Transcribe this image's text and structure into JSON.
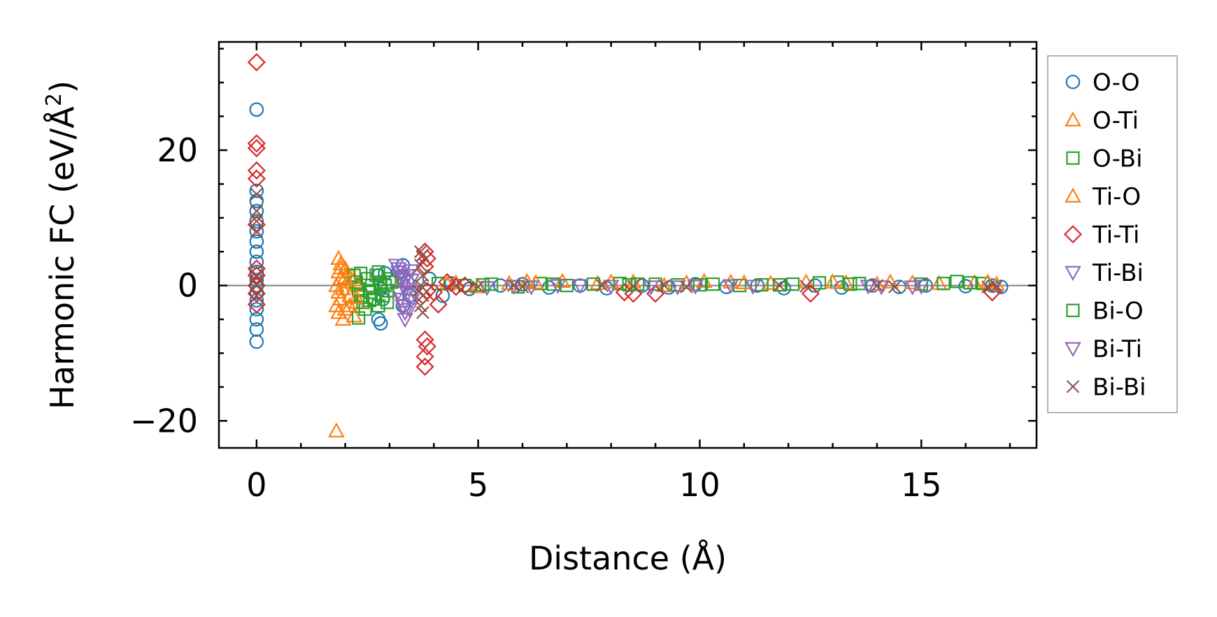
{
  "chart_data": {
    "type": "scatter",
    "xlabel": "Distance (Å)",
    "ylabel_main": "Harmonic FC (eV/Å",
    "ylabel_sup": "2",
    "ylabel_close": ")",
    "xlim": [
      -0.85,
      17.6
    ],
    "ylim": [
      -24,
      36
    ],
    "xticks": [
      0,
      5,
      10,
      15
    ],
    "xtick_labels": [
      "0",
      "5",
      "10",
      "15"
    ],
    "yticks": [
      -20,
      0,
      20
    ],
    "ytick_labels": [
      "−20",
      "0",
      "20"
    ],
    "x_minor_step": 1,
    "y_minor_step": 5,
    "zero_line": true,
    "grid": false,
    "legend_position": "outside-right",
    "series": [
      {
        "name": "O-O",
        "marker": "circle",
        "color": "#1f77b4",
        "points": [
          [
            0,
            26
          ],
          [
            0,
            14
          ],
          [
            0,
            12.5
          ],
          [
            0,
            11
          ],
          [
            0,
            9.5
          ],
          [
            0,
            8
          ],
          [
            0,
            6.5
          ],
          [
            0,
            5
          ],
          [
            0,
            3.5
          ],
          [
            0,
            2
          ],
          [
            0,
            0.8
          ],
          [
            0,
            0
          ],
          [
            0,
            -1
          ],
          [
            0,
            -2.2
          ],
          [
            0,
            -3.5
          ],
          [
            0,
            -5
          ],
          [
            0,
            -6.5
          ],
          [
            0,
            -8.3
          ],
          [
            2.75,
            1.5
          ],
          [
            2.8,
            -0.5
          ],
          [
            2.75,
            -5
          ],
          [
            2.8,
            -5.6
          ],
          [
            2.85,
            -2
          ],
          [
            2.9,
            1.8
          ],
          [
            3.2,
            2
          ],
          [
            3.3,
            3
          ],
          [
            3.4,
            0.5
          ],
          [
            3.45,
            -1.5
          ],
          [
            3.3,
            -3
          ],
          [
            3.9,
            1
          ],
          [
            4.2,
            -1.5
          ],
          [
            4.4,
            0.3
          ],
          [
            4.8,
            -0.5
          ],
          [
            5.5,
            0
          ],
          [
            6.0,
            0.2
          ],
          [
            6.6,
            -0.3
          ],
          [
            7.3,
            0
          ],
          [
            7.9,
            -0.4
          ],
          [
            8.7,
            0
          ],
          [
            9.3,
            -0.3
          ],
          [
            9.9,
            0.2
          ],
          [
            10.6,
            -0.2
          ],
          [
            11.3,
            0
          ],
          [
            11.9,
            -0.4
          ],
          [
            12.6,
            0
          ],
          [
            13.2,
            -0.3
          ],
          [
            13.9,
            0
          ],
          [
            14.5,
            -0.2
          ],
          [
            15.1,
            0
          ],
          [
            16.0,
            -0.1
          ],
          [
            16.6,
            0
          ],
          [
            16.8,
            -0.2
          ]
        ]
      },
      {
        "name": "O-Ti",
        "marker": "triangle-up",
        "color": "#ff7f0e",
        "points": [
          [
            1.8,
            -21.5
          ],
          [
            1.85,
            4
          ],
          [
            1.9,
            3.2
          ],
          [
            1.85,
            2
          ],
          [
            1.9,
            1
          ],
          [
            1.8,
            0
          ],
          [
            1.85,
            -1
          ],
          [
            1.9,
            -2
          ],
          [
            1.8,
            -3
          ],
          [
            1.85,
            -4
          ],
          [
            1.95,
            -5
          ],
          [
            2.0,
            2.5
          ],
          [
            2.0,
            -3.5
          ],
          [
            2.05,
            0.5
          ],
          [
            2.1,
            -1.5
          ],
          [
            2.15,
            1.5
          ],
          [
            2.2,
            -4.5
          ],
          [
            2.25,
            -2.5
          ],
          [
            2.3,
            0
          ],
          [
            4.3,
            0.2
          ],
          [
            5.0,
            -0.2
          ],
          [
            5.7,
            0.3
          ],
          [
            6.1,
            0.6
          ],
          [
            6.9,
            0.6
          ],
          [
            7.7,
            0.3
          ],
          [
            8.5,
            0.5
          ],
          [
            9.2,
            0
          ],
          [
            10.1,
            0.6
          ],
          [
            10.7,
            0.5
          ],
          [
            11.6,
            0.3
          ],
          [
            12.4,
            0.5
          ],
          [
            13.3,
            0.4
          ],
          [
            14.0,
            0.2
          ],
          [
            14.8,
            0.4
          ],
          [
            15.4,
            0.3
          ],
          [
            16.2,
            0.4
          ],
          [
            16.7,
            0.2
          ]
        ]
      },
      {
        "name": "O-Bi",
        "marker": "square",
        "color": "#2ca02c",
        "points": [
          [
            2.2,
            1.5
          ],
          [
            2.25,
            0.5
          ],
          [
            2.3,
            -0.5
          ],
          [
            2.35,
            -1.5
          ],
          [
            2.4,
            -2.5
          ],
          [
            2.45,
            -3.5
          ],
          [
            2.5,
            1
          ],
          [
            2.55,
            -1
          ],
          [
            2.6,
            0
          ],
          [
            2.65,
            -2
          ],
          [
            2.7,
            1.5
          ],
          [
            2.75,
            -3
          ],
          [
            2.8,
            0.5
          ],
          [
            2.85,
            -1.5
          ],
          [
            2.9,
            0
          ],
          [
            2.95,
            -2.5
          ],
          [
            3.0,
            1
          ],
          [
            2.3,
            -4.8
          ],
          [
            4.1,
            0.3
          ],
          [
            4.7,
            0
          ],
          [
            5.3,
            0.2
          ],
          [
            5.9,
            -0.2
          ],
          [
            6.4,
            0.3
          ],
          [
            7.0,
            0
          ],
          [
            7.6,
            0.2
          ],
          [
            8.2,
            0.3
          ],
          [
            8.6,
            0.2
          ],
          [
            9.0,
            0.2
          ],
          [
            9.5,
            0.1
          ],
          [
            10.3,
            0.2
          ],
          [
            10.9,
            0
          ],
          [
            11.4,
            0.1
          ],
          [
            12.1,
            0.2
          ],
          [
            12.7,
            0.4
          ],
          [
            13.1,
            0.5
          ],
          [
            13.6,
            0.3
          ],
          [
            15.0,
            0.2
          ],
          [
            15.8,
            0.6
          ],
          [
            16.1,
            0.4
          ],
          [
            16.4,
            0.3
          ]
        ]
      },
      {
        "name": "Ti-O",
        "marker": "triangle-up",
        "color": "#ff7f0e",
        "points": [
          [
            1.9,
            2.6
          ],
          [
            1.95,
            -0.5
          ],
          [
            2.0,
            1.2
          ],
          [
            2.1,
            -3
          ],
          [
            2.2,
            0.8
          ],
          [
            2.25,
            -1.8
          ],
          [
            4.5,
            0.4
          ],
          [
            6.3,
            0.4
          ],
          [
            8.0,
            0.5
          ],
          [
            9.7,
            0.4
          ],
          [
            11.0,
            0.4
          ],
          [
            13.0,
            0.5
          ],
          [
            14.3,
            0.5
          ],
          [
            16.5,
            0.5
          ]
        ]
      },
      {
        "name": "Ti-Ti",
        "marker": "diamond",
        "color": "#d62728",
        "points": [
          [
            0,
            33
          ],
          [
            0,
            21
          ],
          [
            0,
            20.3
          ],
          [
            0,
            17
          ],
          [
            0,
            15.8
          ],
          [
            0,
            9
          ],
          [
            0,
            2.5
          ],
          [
            0,
            1.5
          ],
          [
            0,
            0
          ],
          [
            0,
            -1.2
          ],
          [
            0,
            -2.8
          ],
          [
            3.8,
            5
          ],
          [
            3.85,
            4
          ],
          [
            3.8,
            2.8
          ],
          [
            3.85,
            -0.8
          ],
          [
            3.75,
            -1.5
          ],
          [
            3.8,
            -8
          ],
          [
            3.85,
            -9
          ],
          [
            3.8,
            -10.5
          ],
          [
            3.8,
            -12
          ],
          [
            4.0,
            -1
          ],
          [
            4.1,
            -2.8
          ],
          [
            4.3,
            0.5
          ],
          [
            4.5,
            -0.2
          ],
          [
            4.7,
            0
          ],
          [
            8.3,
            -1
          ],
          [
            8.5,
            -1.2
          ],
          [
            9.0,
            -1.2
          ],
          [
            12.5,
            -1.2
          ],
          [
            16.6,
            -1
          ]
        ]
      },
      {
        "name": "Ti-Bi",
        "marker": "triangle-down",
        "color": "#9467bd",
        "points": [
          [
            3.15,
            3
          ],
          [
            3.2,
            2
          ],
          [
            3.25,
            1
          ],
          [
            3.3,
            0
          ],
          [
            3.2,
            -1
          ],
          [
            3.25,
            -2
          ],
          [
            3.3,
            -3
          ],
          [
            3.35,
            -4
          ],
          [
            3.35,
            -5
          ],
          [
            3.4,
            1.5
          ],
          [
            3.45,
            -0.5
          ],
          [
            3.5,
            0.8
          ],
          [
            3.5,
            -2.2
          ],
          [
            3.55,
            -1
          ],
          [
            5.2,
            -0.3
          ],
          [
            6.2,
            -0.2
          ],
          [
            7.3,
            0
          ],
          [
            8.9,
            -0.2
          ],
          [
            9.5,
            -0.2
          ],
          [
            10.7,
            0
          ],
          [
            14.1,
            -0.2
          ],
          [
            14.8,
            -0.2
          ]
        ]
      },
      {
        "name": "Bi-O",
        "marker": "square",
        "color": "#2ca02c",
        "points": [
          [
            2.35,
            1.8
          ],
          [
            2.55,
            -2.2
          ],
          [
            2.75,
            2
          ],
          [
            2.95,
            -0.8
          ],
          [
            3.05,
            0.5
          ],
          [
            5.1,
            0.1
          ],
          [
            6.7,
            0.2
          ],
          [
            8.4,
            0.1
          ],
          [
            10.0,
            0.1
          ],
          [
            11.8,
            0.1
          ],
          [
            13.4,
            0.2
          ],
          [
            15.5,
            0.3
          ]
        ]
      },
      {
        "name": "Bi-Ti",
        "marker": "triangle-down",
        "color": "#9467bd",
        "points": [
          [
            3.2,
            2.5
          ],
          [
            3.3,
            1.2
          ],
          [
            3.4,
            -1.2
          ],
          [
            3.45,
            -3.5
          ],
          [
            3.5,
            2.2
          ],
          [
            5.8,
            -0.1
          ],
          [
            6.8,
            0
          ],
          [
            8.0,
            -0.1
          ],
          [
            9.9,
            -0.1
          ],
          [
            11.2,
            -0.1
          ],
          [
            13.8,
            -0.1
          ],
          [
            15.0,
            -0.1
          ]
        ]
      },
      {
        "name": "Bi-Bi",
        "marker": "x",
        "color": "#8c564b",
        "points": [
          [
            0,
            13.5
          ],
          [
            0,
            11
          ],
          [
            0,
            9.5
          ],
          [
            0,
            8
          ],
          [
            0,
            1.5
          ],
          [
            0,
            0
          ],
          [
            0,
            -1.5
          ],
          [
            3.7,
            5
          ],
          [
            3.75,
            4.5
          ],
          [
            3.7,
            3
          ],
          [
            3.75,
            1.5
          ],
          [
            3.7,
            0
          ],
          [
            3.75,
            -1.5
          ],
          [
            3.7,
            -3
          ],
          [
            3.75,
            -4
          ],
          [
            3.65,
            -0.8
          ],
          [
            4.5,
            0
          ],
          [
            5.0,
            -0.2
          ],
          [
            5.8,
            0
          ],
          [
            6.0,
            -0.2
          ],
          [
            7.8,
            0
          ],
          [
            8.5,
            -0.1
          ],
          [
            9.2,
            0
          ],
          [
            9.7,
            -0.2
          ],
          [
            11.8,
            0
          ],
          [
            12.4,
            -0.1
          ],
          [
            14.0,
            0
          ],
          [
            14.4,
            -0.2
          ],
          [
            16.5,
            -0.2
          ],
          [
            16.7,
            -0.1
          ]
        ]
      }
    ]
  }
}
